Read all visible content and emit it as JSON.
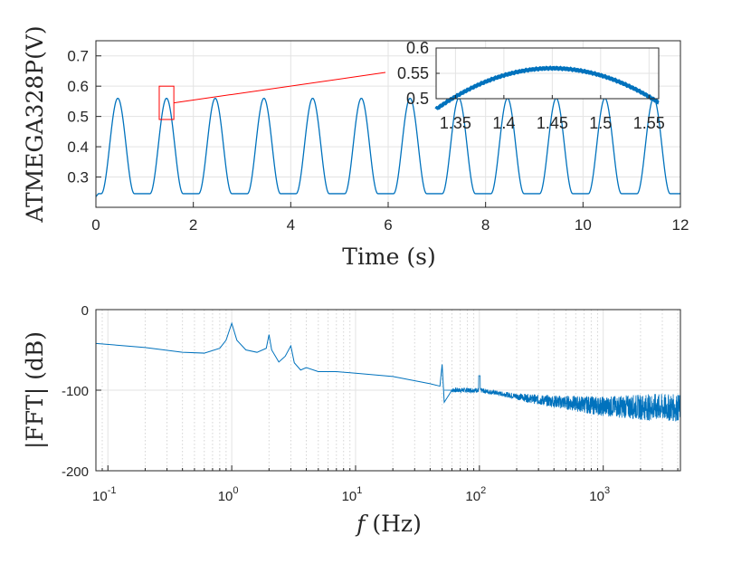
{
  "colors": {
    "series": "#0072BD",
    "zoom": "#ff0000",
    "grid": "#e3e3e3",
    "axis": "#262626"
  },
  "chart_data": [
    {
      "type": "line",
      "name": "time-domain",
      "xlabel": "Time (s)",
      "ylabel": "ATMEGA328P(V)",
      "xlim": [
        0,
        12
      ],
      "ylim": [
        0.2,
        0.75
      ],
      "xticks": [
        0,
        2,
        4,
        6,
        8,
        10,
        12
      ],
      "yticks": [
        0.3,
        0.4,
        0.5,
        0.6,
        0.7
      ],
      "xtick_labels": [
        "0",
        "2",
        "4",
        "6",
        "8",
        "10",
        "12"
      ],
      "ytick_labels": [
        "0.3",
        "0.4",
        "0.5",
        "0.6",
        "0.7"
      ],
      "grid": true,
      "signal": {
        "period_s": 1.0,
        "first_peak_s": 0.45,
        "peak_v": 0.56,
        "trough_v": 0.245
      },
      "zoom_window": {
        "x": [
          1.3,
          1.6
        ],
        "y": [
          0.49,
          0.6
        ]
      }
    },
    {
      "type": "line",
      "name": "inset-zoom",
      "xlim": [
        1.33,
        1.56
      ],
      "ylim": [
        0.5,
        0.6
      ],
      "xticks": [
        1.35,
        1.4,
        1.45,
        1.5,
        1.55
      ],
      "yticks": [
        0.5,
        0.55,
        0.6
      ],
      "xtick_labels": [
        "1.35",
        "1.4",
        "1.45",
        "1.5",
        "1.55"
      ],
      "ytick_labels": [
        "0.5",
        "0.55",
        "0.6"
      ],
      "grid": true,
      "signal": {
        "peak_t": 1.45,
        "peak_v": 0.56
      }
    },
    {
      "type": "line",
      "name": "spectrum",
      "xlabel_var": "f",
      "xlabel_unit": "(Hz)",
      "ylabel": "|FFT| (dB)",
      "xscale": "log",
      "xlim": [
        0.08,
        4200
      ],
      "ylim": [
        -200,
        0
      ],
      "xticks": [
        0.1,
        1,
        10,
        100,
        1000
      ],
      "xtick_bases": [
        "10",
        "10",
        "10",
        "10",
        "10"
      ],
      "xtick_exponents": [
        "-1",
        "0",
        "1",
        "2",
        "3"
      ],
      "yticks": [
        0,
        -100,
        -200
      ],
      "ytick_labels": [
        "0",
        "-100",
        "-200"
      ],
      "grid": true,
      "points": [
        [
          0.08,
          -42
        ],
        [
          0.2,
          -47
        ],
        [
          0.4,
          -53
        ],
        [
          0.6,
          -54
        ],
        [
          0.8,
          -48
        ],
        [
          0.9,
          -38
        ],
        [
          1.0,
          -17
        ],
        [
          1.1,
          -38
        ],
        [
          1.3,
          -50
        ],
        [
          1.6,
          -53
        ],
        [
          1.9,
          -48
        ],
        [
          2.0,
          -31
        ],
        [
          2.1,
          -50
        ],
        [
          2.4,
          -65
        ],
        [
          2.7,
          -58
        ],
        [
          3.0,
          -45
        ],
        [
          3.2,
          -66
        ],
        [
          3.6,
          -75
        ],
        [
          4.0,
          -72
        ],
        [
          5,
          -77
        ],
        [
          7,
          -77
        ],
        [
          10,
          -79
        ],
        [
          20,
          -83
        ],
        [
          40,
          -92
        ],
        [
          48,
          -95
        ],
        [
          50,
          -68
        ],
        [
          52,
          -115
        ],
        [
          60,
          -100
        ],
        [
          100,
          -100
        ],
        [
          300,
          -112
        ],
        [
          1000,
          -120
        ],
        [
          4200,
          -122
        ]
      ]
    }
  ]
}
